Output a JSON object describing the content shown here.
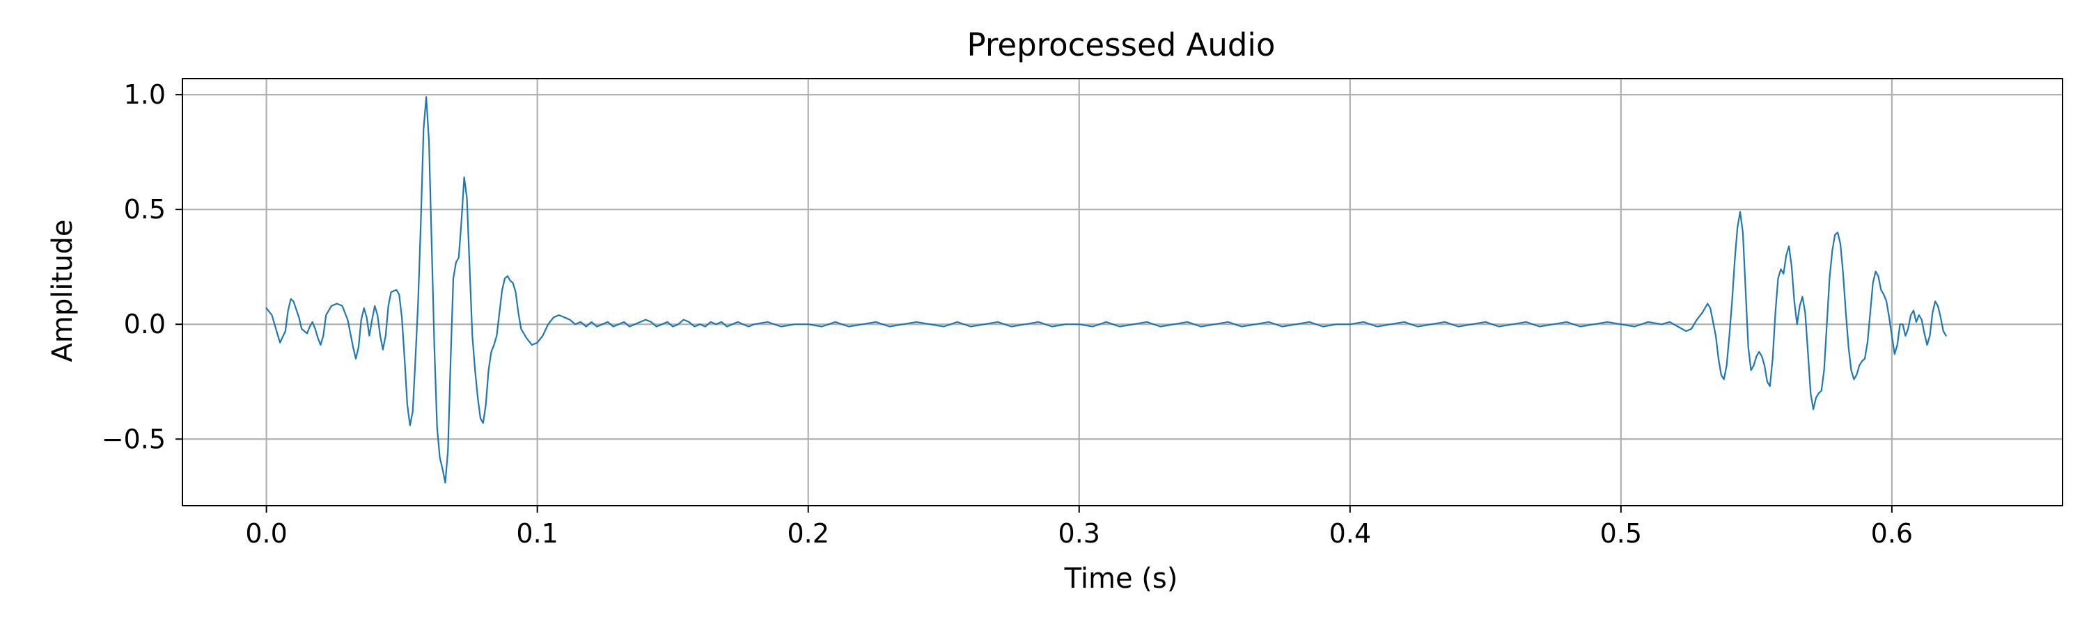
{
  "chart_data": {
    "type": "line",
    "title": "Preprocessed Audio",
    "xlabel": "Time (s)",
    "ylabel": "Amplitude",
    "xlim": [
      -0.031,
      0.663
    ],
    "ylim": [
      -0.79,
      1.07
    ],
    "grid": true,
    "x_ticks": [
      {
        "value": 0.0,
        "label": "0.0"
      },
      {
        "value": 0.1,
        "label": "0.1"
      },
      {
        "value": 0.2,
        "label": "0.2"
      },
      {
        "value": 0.3,
        "label": "0.3"
      },
      {
        "value": 0.4,
        "label": "0.4"
      },
      {
        "value": 0.5,
        "label": "0.5"
      },
      {
        "value": 0.6,
        "label": "0.6"
      }
    ],
    "y_ticks": [
      {
        "value": 1.0,
        "label": "1.0"
      },
      {
        "value": 0.5,
        "label": "0.5"
      },
      {
        "value": 0.0,
        "label": "0.0"
      },
      {
        "value": -0.5,
        "label": "−0.5"
      }
    ],
    "series": [
      {
        "color": "#1f77b4",
        "points": [
          [
            0.0,
            0.07
          ],
          [
            0.002,
            0.04
          ],
          [
            0.004,
            -0.04
          ],
          [
            0.005,
            -0.08
          ],
          [
            0.007,
            -0.03
          ],
          [
            0.008,
            0.06
          ],
          [
            0.009,
            0.11
          ],
          [
            0.01,
            0.1
          ],
          [
            0.012,
            0.03
          ],
          [
            0.013,
            -0.02
          ],
          [
            0.015,
            -0.04
          ],
          [
            0.016,
            -0.01
          ],
          [
            0.017,
            0.01
          ],
          [
            0.018,
            -0.02
          ],
          [
            0.019,
            -0.06
          ],
          [
            0.02,
            -0.09
          ],
          [
            0.021,
            -0.05
          ],
          [
            0.022,
            0.04
          ],
          [
            0.024,
            0.08
          ],
          [
            0.026,
            0.09
          ],
          [
            0.028,
            0.08
          ],
          [
            0.03,
            0.02
          ],
          [
            0.032,
            -0.1
          ],
          [
            0.033,
            -0.15
          ],
          [
            0.034,
            -0.1
          ],
          [
            0.035,
            0.02
          ],
          [
            0.036,
            0.07
          ],
          [
            0.037,
            0.03
          ],
          [
            0.038,
            -0.05
          ],
          [
            0.039,
            0.02
          ],
          [
            0.04,
            0.08
          ],
          [
            0.041,
            0.04
          ],
          [
            0.042,
            -0.05
          ],
          [
            0.043,
            -0.11
          ],
          [
            0.044,
            -0.05
          ],
          [
            0.045,
            0.08
          ],
          [
            0.046,
            0.14
          ],
          [
            0.048,
            0.15
          ],
          [
            0.049,
            0.13
          ],
          [
            0.05,
            0.03
          ],
          [
            0.051,
            -0.15
          ],
          [
            0.052,
            -0.35
          ],
          [
            0.053,
            -0.44
          ],
          [
            0.054,
            -0.38
          ],
          [
            0.055,
            -0.15
          ],
          [
            0.056,
            0.1
          ],
          [
            0.057,
            0.45
          ],
          [
            0.058,
            0.85
          ],
          [
            0.059,
            0.99
          ],
          [
            0.06,
            0.8
          ],
          [
            0.061,
            0.35
          ],
          [
            0.062,
            -0.1
          ],
          [
            0.063,
            -0.45
          ],
          [
            0.064,
            -0.58
          ],
          [
            0.065,
            -0.63
          ],
          [
            0.066,
            -0.69
          ],
          [
            0.067,
            -0.55
          ],
          [
            0.068,
            -0.15
          ],
          [
            0.069,
            0.2
          ],
          [
            0.07,
            0.27
          ],
          [
            0.071,
            0.29
          ],
          [
            0.072,
            0.45
          ],
          [
            0.073,
            0.64
          ],
          [
            0.074,
            0.55
          ],
          [
            0.075,
            0.25
          ],
          [
            0.076,
            -0.05
          ],
          [
            0.077,
            -0.2
          ],
          [
            0.078,
            -0.32
          ],
          [
            0.079,
            -0.41
          ],
          [
            0.08,
            -0.43
          ],
          [
            0.081,
            -0.35
          ],
          [
            0.082,
            -0.2
          ],
          [
            0.083,
            -0.12
          ],
          [
            0.084,
            -0.09
          ],
          [
            0.085,
            -0.05
          ],
          [
            0.086,
            0.05
          ],
          [
            0.087,
            0.15
          ],
          [
            0.088,
            0.2
          ],
          [
            0.089,
            0.21
          ],
          [
            0.09,
            0.19
          ],
          [
            0.091,
            0.18
          ],
          [
            0.092,
            0.14
          ],
          [
            0.093,
            0.05
          ],
          [
            0.094,
            -0.02
          ],
          [
            0.096,
            -0.06
          ],
          [
            0.098,
            -0.09
          ],
          [
            0.1,
            -0.08
          ],
          [
            0.102,
            -0.05
          ],
          [
            0.104,
            0.0
          ],
          [
            0.106,
            0.03
          ],
          [
            0.108,
            0.04
          ],
          [
            0.11,
            0.03
          ],
          [
            0.112,
            0.02
          ],
          [
            0.114,
            0.0
          ],
          [
            0.116,
            0.01
          ],
          [
            0.118,
            -0.01
          ],
          [
            0.12,
            0.01
          ],
          [
            0.122,
            -0.01
          ],
          [
            0.124,
            0.0
          ],
          [
            0.126,
            0.01
          ],
          [
            0.128,
            -0.01
          ],
          [
            0.13,
            0.0
          ],
          [
            0.132,
            0.01
          ],
          [
            0.134,
            -0.01
          ],
          [
            0.136,
            0.0
          ],
          [
            0.138,
            0.01
          ],
          [
            0.14,
            0.02
          ],
          [
            0.142,
            0.01
          ],
          [
            0.144,
            -0.01
          ],
          [
            0.146,
            0.0
          ],
          [
            0.148,
            0.01
          ],
          [
            0.15,
            -0.01
          ],
          [
            0.152,
            0.0
          ],
          [
            0.154,
            0.02
          ],
          [
            0.156,
            0.01
          ],
          [
            0.158,
            -0.01
          ],
          [
            0.16,
            0.0
          ],
          [
            0.162,
            -0.01
          ],
          [
            0.164,
            0.01
          ],
          [
            0.166,
            0.0
          ],
          [
            0.168,
            0.01
          ],
          [
            0.17,
            -0.01
          ],
          [
            0.172,
            0.0
          ],
          [
            0.174,
            0.01
          ],
          [
            0.176,
            0.0
          ],
          [
            0.178,
            -0.01
          ],
          [
            0.18,
            0.0
          ],
          [
            0.185,
            0.01
          ],
          [
            0.19,
            -0.01
          ],
          [
            0.195,
            0.0
          ],
          [
            0.2,
            0.0
          ],
          [
            0.205,
            -0.01
          ],
          [
            0.21,
            0.01
          ],
          [
            0.215,
            -0.01
          ],
          [
            0.22,
            0.0
          ],
          [
            0.225,
            0.01
          ],
          [
            0.23,
            -0.01
          ],
          [
            0.235,
            0.0
          ],
          [
            0.24,
            0.01
          ],
          [
            0.245,
            0.0
          ],
          [
            0.25,
            -0.01
          ],
          [
            0.255,
            0.01
          ],
          [
            0.26,
            -0.01
          ],
          [
            0.265,
            0.0
          ],
          [
            0.27,
            0.01
          ],
          [
            0.275,
            -0.01
          ],
          [
            0.28,
            0.0
          ],
          [
            0.285,
            0.01
          ],
          [
            0.29,
            -0.01
          ],
          [
            0.295,
            0.0
          ],
          [
            0.3,
            0.0
          ],
          [
            0.305,
            -0.01
          ],
          [
            0.31,
            0.01
          ],
          [
            0.315,
            -0.01
          ],
          [
            0.32,
            0.0
          ],
          [
            0.325,
            0.01
          ],
          [
            0.33,
            -0.01
          ],
          [
            0.335,
            0.0
          ],
          [
            0.34,
            0.01
          ],
          [
            0.345,
            -0.01
          ],
          [
            0.35,
            0.0
          ],
          [
            0.355,
            0.01
          ],
          [
            0.36,
            -0.01
          ],
          [
            0.365,
            0.0
          ],
          [
            0.37,
            0.01
          ],
          [
            0.375,
            -0.01
          ],
          [
            0.38,
            0.0
          ],
          [
            0.385,
            0.01
          ],
          [
            0.39,
            -0.01
          ],
          [
            0.395,
            0.0
          ],
          [
            0.4,
            0.0
          ],
          [
            0.405,
            0.01
          ],
          [
            0.41,
            -0.01
          ],
          [
            0.415,
            0.0
          ],
          [
            0.42,
            0.01
          ],
          [
            0.425,
            -0.01
          ],
          [
            0.43,
            0.0
          ],
          [
            0.435,
            0.01
          ],
          [
            0.44,
            -0.01
          ],
          [
            0.445,
            0.0
          ],
          [
            0.45,
            0.01
          ],
          [
            0.455,
            -0.01
          ],
          [
            0.46,
            0.0
          ],
          [
            0.465,
            0.01
          ],
          [
            0.47,
            -0.01
          ],
          [
            0.475,
            0.0
          ],
          [
            0.48,
            0.01
          ],
          [
            0.485,
            -0.01
          ],
          [
            0.49,
            0.0
          ],
          [
            0.495,
            0.01
          ],
          [
            0.5,
            0.0
          ],
          [
            0.505,
            -0.01
          ],
          [
            0.51,
            0.01
          ],
          [
            0.515,
            0.0
          ],
          [
            0.518,
            0.01
          ],
          [
            0.521,
            -0.01
          ],
          [
            0.524,
            -0.03
          ],
          [
            0.526,
            -0.02
          ],
          [
            0.528,
            0.02
          ],
          [
            0.53,
            0.05
          ],
          [
            0.532,
            0.09
          ],
          [
            0.533,
            0.07
          ],
          [
            0.535,
            -0.05
          ],
          [
            0.536,
            -0.15
          ],
          [
            0.537,
            -0.22
          ],
          [
            0.538,
            -0.24
          ],
          [
            0.539,
            -0.18
          ],
          [
            0.54,
            -0.05
          ],
          [
            0.541,
            0.1
          ],
          [
            0.542,
            0.28
          ],
          [
            0.543,
            0.42
          ],
          [
            0.544,
            0.49
          ],
          [
            0.545,
            0.4
          ],
          [
            0.546,
            0.15
          ],
          [
            0.547,
            -0.1
          ],
          [
            0.548,
            -0.2
          ],
          [
            0.549,
            -0.18
          ],
          [
            0.55,
            -0.14
          ],
          [
            0.551,
            -0.12
          ],
          [
            0.552,
            -0.14
          ],
          [
            0.553,
            -0.18
          ],
          [
            0.554,
            -0.25
          ],
          [
            0.555,
            -0.27
          ],
          [
            0.556,
            -0.15
          ],
          [
            0.557,
            0.05
          ],
          [
            0.558,
            0.2
          ],
          [
            0.559,
            0.24
          ],
          [
            0.56,
            0.22
          ],
          [
            0.561,
            0.3
          ],
          [
            0.562,
            0.34
          ],
          [
            0.563,
            0.25
          ],
          [
            0.564,
            0.1
          ],
          [
            0.565,
            0.0
          ],
          [
            0.566,
            0.08
          ],
          [
            0.567,
            0.12
          ],
          [
            0.568,
            0.05
          ],
          [
            0.569,
            -0.12
          ],
          [
            0.57,
            -0.3
          ],
          [
            0.571,
            -0.37
          ],
          [
            0.572,
            -0.32
          ],
          [
            0.573,
            -0.3
          ],
          [
            0.574,
            -0.29
          ],
          [
            0.575,
            -0.2
          ],
          [
            0.576,
            0.0
          ],
          [
            0.577,
            0.2
          ],
          [
            0.578,
            0.32
          ],
          [
            0.579,
            0.39
          ],
          [
            0.58,
            0.4
          ],
          [
            0.581,
            0.35
          ],
          [
            0.582,
            0.22
          ],
          [
            0.583,
            0.05
          ],
          [
            0.584,
            -0.1
          ],
          [
            0.585,
            -0.2
          ],
          [
            0.586,
            -0.24
          ],
          [
            0.587,
            -0.22
          ],
          [
            0.588,
            -0.18
          ],
          [
            0.589,
            -0.16
          ],
          [
            0.59,
            -0.15
          ],
          [
            0.591,
            -0.08
          ],
          [
            0.592,
            0.05
          ],
          [
            0.593,
            0.18
          ],
          [
            0.594,
            0.23
          ],
          [
            0.595,
            0.21
          ],
          [
            0.596,
            0.15
          ],
          [
            0.597,
            0.13
          ],
          [
            0.598,
            0.1
          ],
          [
            0.599,
            0.03
          ],
          [
            0.6,
            -0.05
          ],
          [
            0.601,
            -0.13
          ],
          [
            0.602,
            -0.09
          ],
          [
            0.603,
            0.0
          ],
          [
            0.604,
            0.0
          ],
          [
            0.605,
            -0.05
          ],
          [
            0.606,
            -0.02
          ],
          [
            0.607,
            0.04
          ],
          [
            0.608,
            0.06
          ],
          [
            0.609,
            0.01
          ],
          [
            0.61,
            0.04
          ],
          [
            0.611,
            0.02
          ],
          [
            0.612,
            -0.04
          ],
          [
            0.613,
            -0.09
          ],
          [
            0.614,
            -0.05
          ],
          [
            0.615,
            0.05
          ],
          [
            0.616,
            0.1
          ],
          [
            0.617,
            0.08
          ],
          [
            0.618,
            0.03
          ],
          [
            0.619,
            -0.03
          ],
          [
            0.62,
            -0.05
          ]
        ]
      }
    ]
  }
}
